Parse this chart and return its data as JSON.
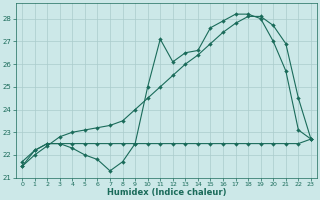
{
  "xlabel": "Humidex (Indice chaleur)",
  "xlim": [
    -0.5,
    23.5
  ],
  "ylim": [
    21.0,
    28.7
  ],
  "yticks": [
    21,
    22,
    23,
    24,
    25,
    26,
    27,
    28
  ],
  "xticks": [
    0,
    1,
    2,
    3,
    4,
    5,
    6,
    7,
    8,
    9,
    10,
    11,
    12,
    13,
    14,
    15,
    16,
    17,
    18,
    19,
    20,
    21,
    22,
    23
  ],
  "bg_color": "#cce8e8",
  "line_color": "#1a6b5a",
  "grid_color": "#aacccc",
  "line1_x": [
    0,
    1,
    2,
    3,
    4,
    5,
    6,
    7,
    8,
    9,
    10,
    11,
    12,
    13,
    14,
    15,
    16,
    17,
    18,
    19,
    20,
    21,
    22,
    23
  ],
  "line1_y": [
    21.5,
    22.2,
    22.5,
    22.5,
    22.3,
    22.0,
    21.8,
    21.3,
    21.7,
    22.5,
    25.0,
    27.1,
    26.1,
    26.5,
    26.6,
    27.6,
    27.9,
    28.2,
    28.2,
    28.0,
    27.0,
    25.7,
    23.1,
    22.7
  ],
  "line2_x": [
    0,
    1,
    2,
    3,
    4,
    5,
    6,
    7,
    8,
    9,
    10,
    11,
    12,
    13,
    14,
    15,
    16,
    17,
    18,
    19,
    20,
    21,
    22,
    23
  ],
  "line2_y": [
    21.7,
    22.2,
    22.5,
    22.5,
    22.5,
    22.5,
    22.5,
    22.5,
    22.5,
    22.5,
    22.5,
    22.5,
    22.5,
    22.5,
    22.5,
    22.5,
    22.5,
    22.5,
    22.5,
    22.5,
    22.5,
    22.5,
    22.5,
    22.7
  ],
  "line3_x": [
    0,
    1,
    2,
    3,
    4,
    5,
    6,
    7,
    8,
    9,
    10,
    11,
    12,
    13,
    14,
    15,
    16,
    17,
    18,
    19,
    20,
    21,
    22,
    23
  ],
  "line3_y": [
    21.5,
    22.0,
    22.4,
    22.8,
    23.0,
    23.1,
    23.2,
    23.3,
    23.5,
    24.0,
    24.5,
    25.0,
    25.5,
    26.0,
    26.4,
    26.9,
    27.4,
    27.8,
    28.1,
    28.1,
    27.7,
    26.9,
    24.5,
    22.7
  ],
  "marker_size": 2.0,
  "line_width": 0.8
}
